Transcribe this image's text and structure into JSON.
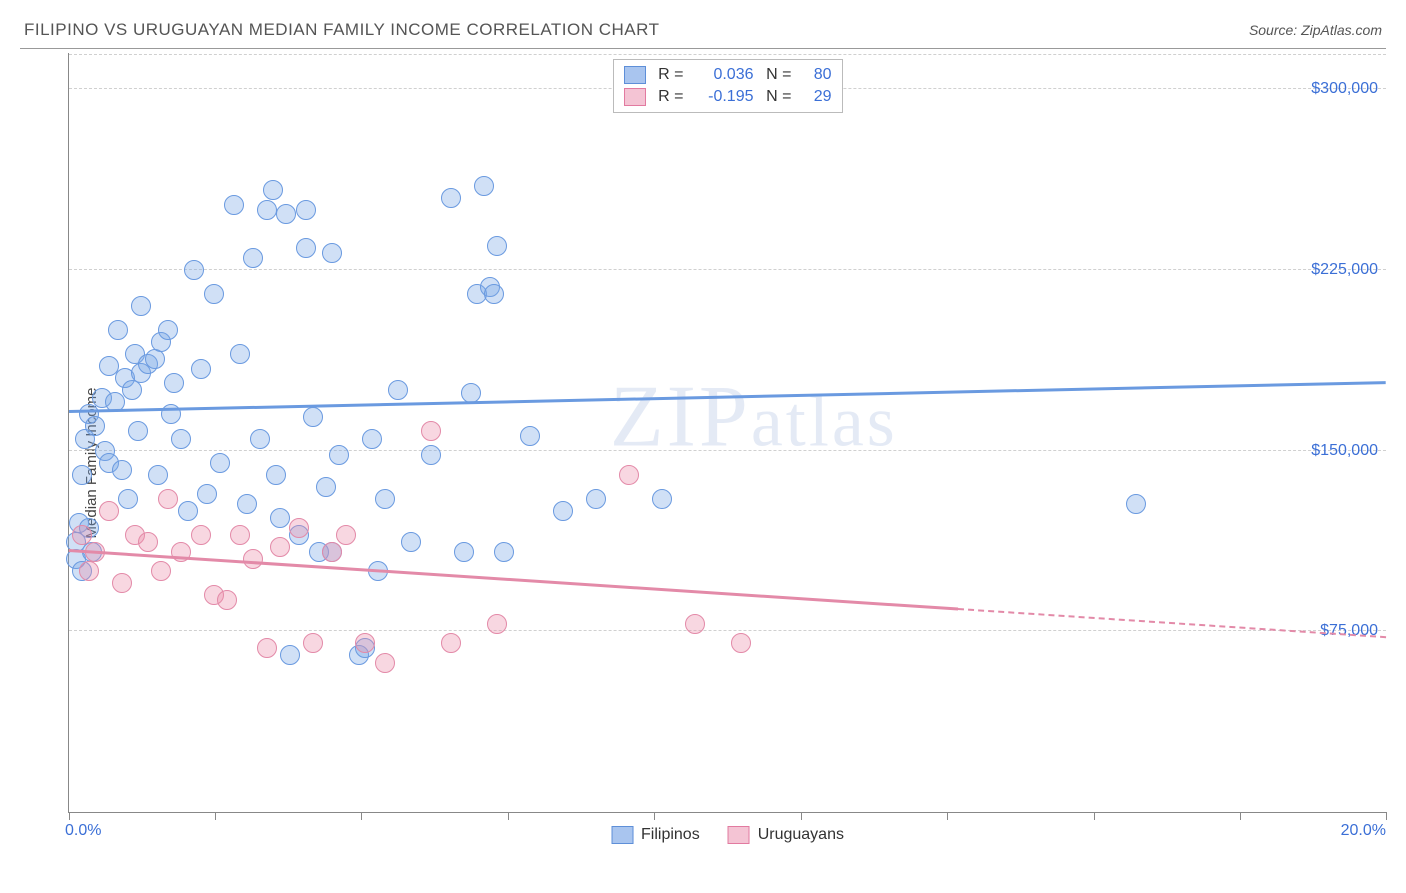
{
  "header": {
    "title": "FILIPINO VS URUGUAYAN MEDIAN FAMILY INCOME CORRELATION CHART",
    "source": "Source: ZipAtlas.com"
  },
  "chart": {
    "type": "scatter",
    "ylabel": "Median Family Income",
    "watermark": "ZIPatlas",
    "xlim": [
      0,
      20
    ],
    "ylim": [
      0,
      315000
    ],
    "x_start_label": "0.0%",
    "x_end_label": "20.0%",
    "xtick_positions": [
      0,
      2.22,
      4.44,
      6.67,
      8.89,
      11.11,
      13.33,
      15.56,
      17.78,
      20
    ],
    "y_gridlines": [
      75000,
      150000,
      225000,
      300000
    ],
    "y_gridline_labels": [
      "$75,000",
      "$150,000",
      "$225,000",
      "$300,000"
    ],
    "grid_color": "#d0d0d0",
    "axis_color": "#888888",
    "tick_label_color": "#3b6fd6",
    "background_color": "#ffffff",
    "marker_radius": 10,
    "marker_stroke_width": 1.5,
    "series": [
      {
        "name": "Filipinos",
        "fill_color": "rgba(120,165,230,0.35)",
        "stroke_color": "#6a9ae0",
        "swatch_fill": "#a9c5ef",
        "swatch_border": "#5e8fd8",
        "R": "0.036",
        "N": "80",
        "trend": {
          "y_at_xmin": 166000,
          "y_at_xmax": 178000,
          "solid_until_x": 20
        },
        "points": [
          [
            0.1,
            105000
          ],
          [
            0.1,
            112000
          ],
          [
            0.15,
            120000
          ],
          [
            0.2,
            100000
          ],
          [
            0.2,
            140000
          ],
          [
            0.25,
            155000
          ],
          [
            0.3,
            165000
          ],
          [
            0.3,
            118000
          ],
          [
            0.35,
            108000
          ],
          [
            0.4,
            160000
          ],
          [
            0.5,
            172000
          ],
          [
            0.55,
            150000
          ],
          [
            0.6,
            185000
          ],
          [
            0.6,
            145000
          ],
          [
            0.7,
            170000
          ],
          [
            0.75,
            200000
          ],
          [
            0.8,
            142000
          ],
          [
            0.85,
            180000
          ],
          [
            0.9,
            130000
          ],
          [
            0.95,
            175000
          ],
          [
            1.0,
            190000
          ],
          [
            1.05,
            158000
          ],
          [
            1.1,
            182000
          ],
          [
            1.1,
            210000
          ],
          [
            1.2,
            186000
          ],
          [
            1.3,
            188000
          ],
          [
            1.35,
            140000
          ],
          [
            1.4,
            195000
          ],
          [
            1.5,
            200000
          ],
          [
            1.55,
            165000
          ],
          [
            1.6,
            178000
          ],
          [
            1.7,
            155000
          ],
          [
            1.8,
            125000
          ],
          [
            1.9,
            225000
          ],
          [
            2.0,
            184000
          ],
          [
            2.1,
            132000
          ],
          [
            2.2,
            215000
          ],
          [
            2.3,
            145000
          ],
          [
            2.5,
            252000
          ],
          [
            2.6,
            190000
          ],
          [
            2.7,
            128000
          ],
          [
            2.8,
            230000
          ],
          [
            2.9,
            155000
          ],
          [
            3.0,
            250000
          ],
          [
            3.1,
            258000
          ],
          [
            3.15,
            140000
          ],
          [
            3.2,
            122000
          ],
          [
            3.3,
            248000
          ],
          [
            3.35,
            65000
          ],
          [
            3.5,
            115000
          ],
          [
            3.6,
            234000
          ],
          [
            3.6,
            250000
          ],
          [
            3.7,
            164000
          ],
          [
            3.8,
            108000
          ],
          [
            3.9,
            135000
          ],
          [
            4.0,
            232000
          ],
          [
            4.0,
            108000
          ],
          [
            4.1,
            148000
          ],
          [
            4.4,
            65000
          ],
          [
            4.5,
            68000
          ],
          [
            4.6,
            155000
          ],
          [
            4.7,
            100000
          ],
          [
            4.8,
            130000
          ],
          [
            5.0,
            175000
          ],
          [
            5.2,
            112000
          ],
          [
            5.5,
            148000
          ],
          [
            5.8,
            255000
          ],
          [
            6.0,
            108000
          ],
          [
            6.1,
            174000
          ],
          [
            6.2,
            215000
          ],
          [
            6.3,
            260000
          ],
          [
            6.4,
            218000
          ],
          [
            6.45,
            215000
          ],
          [
            6.5,
            235000
          ],
          [
            6.6,
            108000
          ],
          [
            7.0,
            156000
          ],
          [
            7.5,
            125000
          ],
          [
            8.0,
            130000
          ],
          [
            9.0,
            130000
          ],
          [
            16.2,
            128000
          ]
        ]
      },
      {
        "name": "Uruguayans",
        "fill_color": "rgba(235,140,170,0.35)",
        "stroke_color": "#e38aa8",
        "swatch_fill": "#f4c4d4",
        "swatch_border": "#e27aa0",
        "R": "-0.195",
        "N": "29",
        "trend": {
          "y_at_xmin": 108000,
          "y_at_xmax": 72000,
          "solid_until_x": 13.5
        },
        "points": [
          [
            0.2,
            115000
          ],
          [
            0.3,
            100000
          ],
          [
            0.4,
            108000
          ],
          [
            0.6,
            125000
          ],
          [
            0.8,
            95000
          ],
          [
            1.0,
            115000
          ],
          [
            1.2,
            112000
          ],
          [
            1.4,
            100000
          ],
          [
            1.5,
            130000
          ],
          [
            1.7,
            108000
          ],
          [
            2.0,
            115000
          ],
          [
            2.2,
            90000
          ],
          [
            2.4,
            88000
          ],
          [
            2.6,
            115000
          ],
          [
            2.8,
            105000
          ],
          [
            3.0,
            68000
          ],
          [
            3.2,
            110000
          ],
          [
            3.5,
            118000
          ],
          [
            3.7,
            70000
          ],
          [
            4.0,
            108000
          ],
          [
            4.2,
            115000
          ],
          [
            4.5,
            70000
          ],
          [
            4.8,
            62000
          ],
          [
            5.5,
            158000
          ],
          [
            5.8,
            70000
          ],
          [
            6.5,
            78000
          ],
          [
            8.5,
            140000
          ],
          [
            9.5,
            78000
          ],
          [
            10.2,
            70000
          ]
        ]
      }
    ],
    "legend_top": {
      "R_label": "R =",
      "N_label": "N ="
    },
    "legend_bottom": [
      {
        "label": "Filipinos",
        "series": 0
      },
      {
        "label": "Uruguayans",
        "series": 1
      }
    ]
  }
}
